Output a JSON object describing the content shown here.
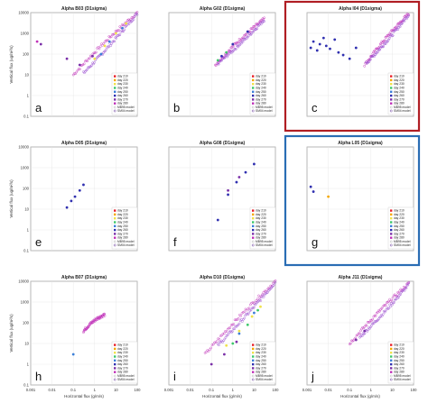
{
  "figure": {
    "x_axis_label": "Horizontal flux (g/m/s)",
    "y_axis_label": "Vertical flux (ug/m²/s)",
    "x_ticks": [
      "0.001",
      "0.01",
      "0.1",
      "1",
      "10",
      "100"
    ],
    "y_ticks": [
      "0.1",
      "1",
      "10",
      "100",
      "1000",
      "10000"
    ],
    "day_legend": [
      "day 210",
      "day 220",
      "day 230",
      "day 240",
      "day 250",
      "day 260",
      "day 270",
      "day 280"
    ],
    "model_legend": [
      "MB95 model",
      "SM04 model"
    ],
    "day_colors": [
      "#e8202a",
      "#f5a800",
      "#f0e24a",
      "#3cc86a",
      "#3c7fd8",
      "#3030b0",
      "#7a2fa8",
      "#c030b8"
    ],
    "model_colors": [
      "#b8b8b8",
      "#6a3c9c"
    ]
  },
  "chart_data": [
    {
      "type": "scatter",
      "title": "Alpha B03 (D1sigma)",
      "panel_label": "a",
      "highlight": "",
      "xscale": "log",
      "yscale": "log",
      "xlim": [
        0.001,
        100
      ],
      "ylim": [
        0.1,
        10000
      ],
      "series": [
        {
          "name": "SM04 model",
          "kind": "band",
          "x": [
            0.1,
            100
          ],
          "y": [
            10,
            10000
          ]
        },
        {
          "name": "MB95 model",
          "kind": "band",
          "x": [
            0.3,
            100
          ],
          "y": [
            12,
            9000
          ]
        },
        {
          "name": "day 230",
          "x": [
            1,
            3,
            10,
            30
          ],
          "y": [
            60,
            250,
            1000,
            3000
          ]
        },
        {
          "name": "day 250",
          "x": [
            2,
            5,
            20
          ],
          "y": [
            100,
            400,
            1800
          ]
        },
        {
          "name": "day 270",
          "x": [
            0.003,
            0.05,
            0.2,
            0.8
          ],
          "y": [
            300,
            60,
            30,
            80
          ]
        },
        {
          "name": "day 280",
          "x": [
            0.002
          ],
          "y": [
            400
          ]
        }
      ]
    },
    {
      "type": "scatter",
      "title": "Alpha G02 (D1sigma)",
      "panel_label": "b",
      "highlight": "",
      "xscale": "log",
      "yscale": "log",
      "xlim": [
        0.001,
        100
      ],
      "ylim": [
        0.1,
        10000
      ],
      "series": [
        {
          "name": "SM04 model",
          "kind": "band",
          "x": [
            0.15,
            30
          ],
          "y": [
            30,
            5000
          ]
        },
        {
          "name": "MB95 model",
          "kind": "band",
          "x": [
            0.2,
            30
          ],
          "y": [
            35,
            4500
          ]
        },
        {
          "name": "day 260",
          "x": [
            0.3,
            1,
            5
          ],
          "y": [
            80,
            300,
            1200
          ]
        },
        {
          "name": "day 240",
          "x": [
            0.2,
            0.5
          ],
          "y": [
            50,
            120
          ]
        }
      ]
    },
    {
      "type": "scatter",
      "title": "Alpha I04 (D1sigma)",
      "panel_label": "c",
      "highlight": "red",
      "xscale": "log",
      "yscale": "log",
      "xlim": [
        0.001,
        100
      ],
      "ylim": [
        0.1,
        10000
      ],
      "series": [
        {
          "name": "SM04 model",
          "kind": "band",
          "x": [
            0.5,
            60
          ],
          "y": [
            30,
            9000
          ]
        },
        {
          "name": "MB95 model",
          "kind": "band",
          "x": [
            0.6,
            60
          ],
          "y": [
            35,
            8000
          ]
        },
        {
          "name": "day 260",
          "x": [
            0.0015,
            0.002,
            0.003,
            0.004,
            0.006,
            0.008,
            0.012,
            0.02,
            0.03,
            0.05,
            0.1,
            0.2
          ],
          "y": [
            200,
            400,
            150,
            300,
            600,
            250,
            180,
            500,
            120,
            90,
            60,
            200
          ]
        }
      ]
    },
    {
      "type": "scatter",
      "title": "Alpha D05 (D1sigma)",
      "panel_label": "e",
      "highlight": "",
      "xscale": "log",
      "yscale": "log",
      "xlim": [
        0.001,
        100
      ],
      "ylim": [
        0.1,
        10000
      ],
      "series": [
        {
          "name": "day 260",
          "x": [
            0.05,
            0.08,
            0.12,
            0.2,
            0.3
          ],
          "y": [
            12,
            25,
            40,
            80,
            150
          ]
        }
      ]
    },
    {
      "type": "scatter",
      "title": "Alpha G08 (D1sigma)",
      "panel_label": "f",
      "highlight": "",
      "xscale": "log",
      "yscale": "log",
      "xlim": [
        0.001,
        100
      ],
      "ylim": [
        0.1,
        10000
      ],
      "series": [
        {
          "name": "day 260",
          "x": [
            0.2,
            0.6,
            1.5,
            4,
            10
          ],
          "y": [
            3,
            50,
            200,
            600,
            1500
          ]
        },
        {
          "name": "day 270",
          "x": [
            0.6,
            2
          ],
          "y": [
            80,
            350
          ]
        }
      ]
    },
    {
      "type": "scatter",
      "title": "Alpha L05 (D1sigma)",
      "panel_label": "g",
      "highlight": "blue",
      "xscale": "log",
      "yscale": "log",
      "xlim": [
        0.001,
        100
      ],
      "ylim": [
        0.1,
        10000
      ],
      "series": [
        {
          "name": "day 260",
          "x": [
            0.0015,
            0.002
          ],
          "y": [
            120,
            70
          ]
        },
        {
          "name": "day 220",
          "x": [
            0.01
          ],
          "y": [
            40
          ]
        }
      ]
    },
    {
      "type": "scatter",
      "title": "Alpha B07 (D1sigma)",
      "panel_label": "h",
      "highlight": "",
      "xscale": "log",
      "yscale": "log",
      "xlim": [
        0.001,
        100
      ],
      "ylim": [
        0.1,
        10000
      ],
      "series": [
        {
          "name": "SM04 model",
          "kind": "band",
          "x": [
            0.3,
            3
          ],
          "y": [
            40,
            250
          ]
        },
        {
          "name": "day 250",
          "x": [
            0.1
          ],
          "y": [
            3
          ]
        }
      ]
    },
    {
      "type": "scatter",
      "title": "Alpha D10 (D1sigma)",
      "panel_label": "i",
      "highlight": "",
      "xscale": "log",
      "yscale": "log",
      "xlim": [
        0.001,
        100
      ],
      "ylim": [
        0.1,
        10000
      ],
      "series": [
        {
          "name": "SM04 model",
          "kind": "band",
          "x": [
            0.05,
            100
          ],
          "y": [
            3,
            10000
          ]
        },
        {
          "name": "MB95 model",
          "kind": "band",
          "x": [
            0.2,
            100
          ],
          "y": [
            8,
            9000
          ]
        },
        {
          "name": "day 230",
          "x": [
            0.5,
            2,
            8,
            20
          ],
          "y": [
            8,
            40,
            200,
            600
          ]
        },
        {
          "name": "day 240",
          "x": [
            1,
            5,
            15
          ],
          "y": [
            10,
            80,
            400
          ]
        },
        {
          "name": "day 250",
          "x": [
            2,
            10
          ],
          "y": [
            30,
            300
          ]
        },
        {
          "name": "day 270",
          "x": [
            0.1,
            0.4,
            1.5
          ],
          "y": [
            1,
            3,
            12
          ]
        }
      ]
    },
    {
      "type": "scatter",
      "title": "Alpha J11 (D1sigma)",
      "panel_label": "j",
      "highlight": "",
      "xscale": "log",
      "yscale": "log",
      "xlim": [
        0.001,
        100
      ],
      "ylim": [
        0.1,
        10000
      ],
      "series": [
        {
          "name": "SM04 model",
          "kind": "band",
          "x": [
            0.1,
            60
          ],
          "y": [
            10,
            8000
          ]
        },
        {
          "name": "MB95 model",
          "kind": "band",
          "x": [
            0.3,
            60
          ],
          "y": [
            20,
            7000
          ]
        },
        {
          "name": "day 270",
          "x": [
            0.2,
            0.5
          ],
          "y": [
            15,
            40
          ]
        }
      ]
    }
  ]
}
